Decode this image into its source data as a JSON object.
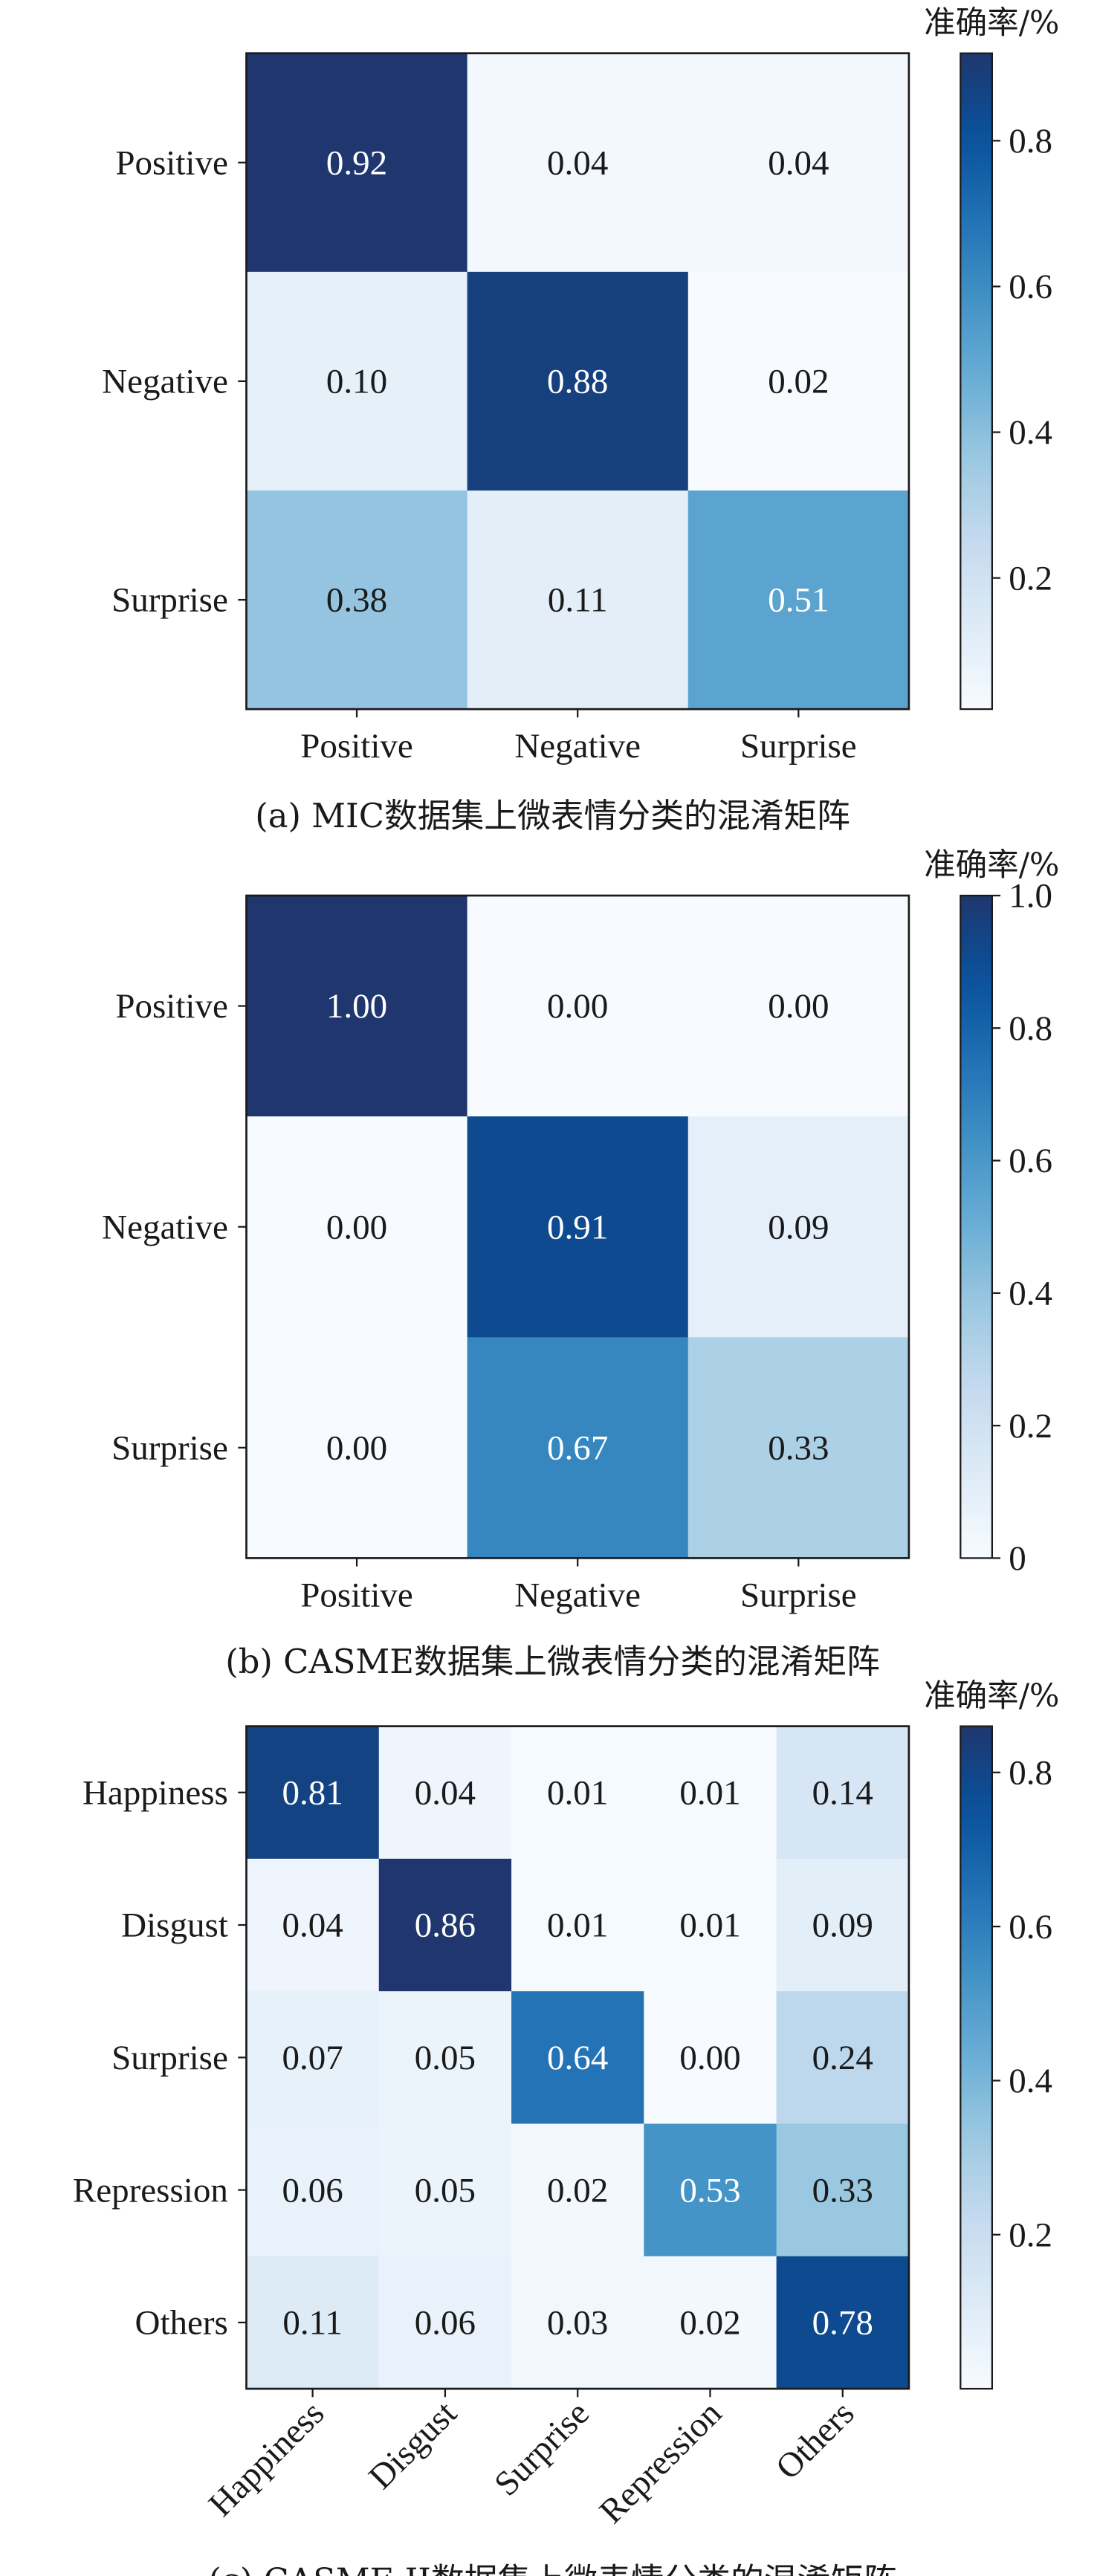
{
  "chart_data": [
    {
      "type": "heatmap",
      "caption": "(a) MIC数据集上微表情分类的混淆矩阵",
      "colorbar_title": "准确率/%",
      "colorbar_ticks": [
        "0.2",
        "0.4",
        "0.6",
        "0.8"
      ],
      "colorbar_tick_values": [
        0.2,
        0.4,
        0.6,
        0.8
      ],
      "vmin": 0.02,
      "vmax": 0.92,
      "row_labels": [
        "Positive",
        "Negative",
        "Surprise"
      ],
      "col_labels": [
        "Positive",
        "Negative",
        "Surprise"
      ],
      "values": [
        [
          0.92,
          0.04,
          0.04
        ],
        [
          0.1,
          0.88,
          0.02
        ],
        [
          0.38,
          0.11,
          0.51
        ]
      ],
      "value_labels": [
        [
          "0.92",
          "0.04",
          "0.04"
        ],
        [
          "0.10",
          "0.88",
          "0.02"
        ],
        [
          "0.38",
          "0.11",
          "0.51"
        ]
      ]
    },
    {
      "type": "heatmap",
      "caption": "(b) CASME数据集上微表情分类的混淆矩阵",
      "colorbar_title": "准确率/%",
      "colorbar_ticks": [
        "0",
        "0.2",
        "0.4",
        "0.6",
        "0.8",
        "1.0"
      ],
      "colorbar_tick_values": [
        0,
        0.2,
        0.4,
        0.6,
        0.8,
        1.0
      ],
      "vmin": 0,
      "vmax": 1.0,
      "row_labels": [
        "Positive",
        "Negative",
        "Surprise"
      ],
      "col_labels": [
        "Positive",
        "Negative",
        "Surprise"
      ],
      "values": [
        [
          1.0,
          0.0,
          0.0
        ],
        [
          0.0,
          0.91,
          0.09
        ],
        [
          0.0,
          0.67,
          0.33
        ]
      ],
      "value_labels": [
        [
          "1.00",
          "0.00",
          "0.00"
        ],
        [
          "0.00",
          "0.91",
          "0.09"
        ],
        [
          "0.00",
          "0.67",
          "0.33"
        ]
      ]
    },
    {
      "type": "heatmap",
      "caption": "(c) CASME II数据集上微表情分类的混淆矩阵",
      "colorbar_title": "准确率/%",
      "colorbar_ticks": [
        "0.2",
        "0.4",
        "0.6",
        "0.8"
      ],
      "colorbar_tick_values": [
        0.2,
        0.4,
        0.6,
        0.8
      ],
      "vmin": 0,
      "vmax": 0.86,
      "row_labels": [
        "Happiness",
        "Disgust",
        "Surprise",
        "Repression",
        "Others"
      ],
      "col_labels": [
        "Happiness",
        "Disgust",
        "Surprise",
        "Repression",
        "Others"
      ],
      "values": [
        [
          0.81,
          0.04,
          0.01,
          0.01,
          0.14
        ],
        [
          0.04,
          0.86,
          0.01,
          0.01,
          0.09
        ],
        [
          0.07,
          0.05,
          0.64,
          0.0,
          0.24
        ],
        [
          0.06,
          0.05,
          0.02,
          0.53,
          0.33
        ],
        [
          0.11,
          0.06,
          0.03,
          0.02,
          0.78
        ]
      ],
      "value_labels": [
        [
          "0.81",
          "0.04",
          "0.01",
          "0.01",
          "0.14"
        ],
        [
          "0.04",
          "0.86",
          "0.01",
          "0.01",
          "0.09"
        ],
        [
          "0.07",
          "0.05",
          "0.64",
          "0.00",
          "0.24"
        ],
        [
          "0.06",
          "0.05",
          "0.02",
          "0.53",
          "0.33"
        ],
        [
          "0.11",
          "0.06",
          "0.03",
          "0.02",
          "0.78"
        ]
      ]
    }
  ]
}
